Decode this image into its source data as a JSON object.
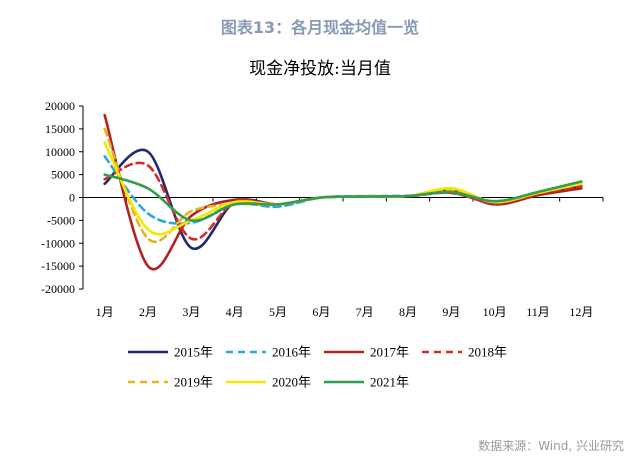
{
  "figure_title": "图表13：各月现金均值一览",
  "source_note": "数据来源：Wind, 兴业研究",
  "chart_data": {
    "type": "line",
    "title": "现金净投放:当月值",
    "categories": [
      "1月",
      "2月",
      "3月",
      "4月",
      "5月",
      "6月",
      "7月",
      "8月",
      "9月",
      "10月",
      "11月",
      "12月"
    ],
    "ylim": [
      -20000,
      20000
    ],
    "yticks": [
      "20000",
      "15000",
      "10000",
      "5000",
      "0",
      "-5000",
      "-10000",
      "-15000",
      "-20000"
    ],
    "legend_position": "bottom",
    "series": [
      {
        "name": "2015年",
        "color": "#1f2b6e",
        "dash": "solid",
        "values": [
          3000,
          10000,
          -11000,
          -1000,
          -1500,
          0,
          200,
          300,
          1500,
          -1000,
          800,
          2500
        ]
      },
      {
        "name": "2016年",
        "color": "#2ea7e0",
        "dash": "dashed",
        "values": [
          9000,
          -3500,
          -5500,
          -1500,
          -2000,
          0,
          300,
          400,
          1000,
          -1200,
          1000,
          3000
        ]
      },
      {
        "name": "2017年",
        "color": "#b22222",
        "dash": "solid",
        "values": [
          18000,
          -15000,
          -4000,
          -500,
          -1500,
          0,
          200,
          300,
          1500,
          -1500,
          500,
          2000
        ]
      },
      {
        "name": "2018年",
        "color": "#d42a2a",
        "dash": "dashed",
        "values": [
          4000,
          7000,
          -9000,
          -1000,
          -1500,
          0,
          200,
          300,
          1000,
          -1200,
          800,
          2500
        ]
      },
      {
        "name": "2019年",
        "color": "#e6b422",
        "dash": "dashed",
        "values": [
          15000,
          -9000,
          -3000,
          -1500,
          -1500,
          0,
          200,
          300,
          1500,
          -1000,
          1000,
          3000
        ]
      },
      {
        "name": "2020年",
        "color": "#f5e800",
        "dash": "solid",
        "values": [
          12000,
          -7000,
          -5000,
          -1000,
          -1500,
          0,
          200,
          300,
          2000,
          -1000,
          1000,
          3000
        ]
      },
      {
        "name": "2021年",
        "color": "#2e9e4f",
        "dash": "solid",
        "values": [
          5000,
          2000,
          -5000,
          -1500,
          -1500,
          0,
          200,
          300,
          1200,
          -800,
          1200,
          3500
        ]
      }
    ]
  }
}
